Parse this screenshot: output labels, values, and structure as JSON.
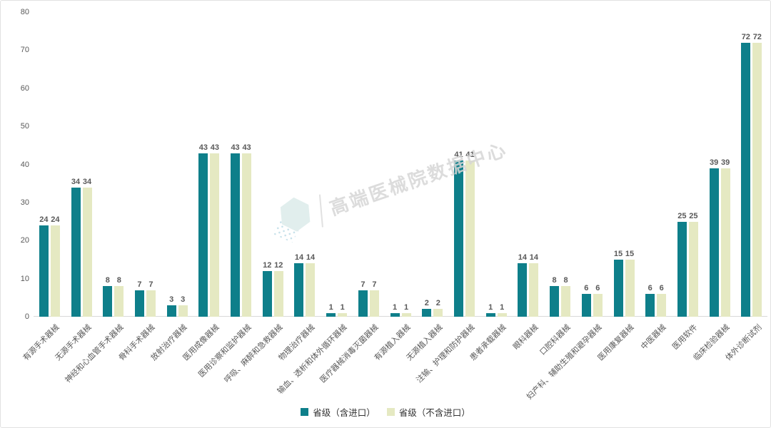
{
  "watermark": {
    "divider": "",
    "text": "高端医械院数据中心"
  },
  "legend": {
    "position": "bottom"
  },
  "chart_data": {
    "type": "bar",
    "title": "",
    "xlabel": "",
    "ylabel": "",
    "categories": [
      "有源手术器械",
      "无源手术器械",
      "神经和心血管手术器械",
      "骨科手术器械",
      "放射治疗器械",
      "医用成像器械",
      "医用诊察和监护器械",
      "呼吸、麻醉和急救器械",
      "物理治疗器械",
      "输血、透析和体外循环器械",
      "医疗器械消毒灭菌器械",
      "有源植入器械",
      "无源植入器械",
      "注输、护理和防护器械",
      "患者承载器械",
      "眼科器械",
      "口腔科器械",
      "妇产科、辅助生殖和避孕器械",
      "医用康复器械",
      "中医器械",
      "医用软件",
      "临床检验器械",
      "体外诊断试剂"
    ],
    "series": [
      {
        "name": "省级（含进口）",
        "color": "#0e7f8a",
        "values": [
          24,
          34,
          8,
          7,
          3,
          43,
          43,
          12,
          14,
          1,
          7,
          1,
          2,
          41,
          1,
          14,
          8,
          6,
          15,
          6,
          25,
          39,
          72
        ]
      },
      {
        "name": "省级（不含进口）",
        "color": "#e5e9c2",
        "values": [
          24,
          34,
          8,
          7,
          3,
          43,
          43,
          12,
          14,
          1,
          7,
          1,
          2,
          41,
          1,
          14,
          8,
          6,
          15,
          6,
          25,
          39,
          72
        ]
      }
    ],
    "ylim": [
      0,
      80
    ],
    "yticks": [
      0,
      10,
      20,
      30,
      40,
      50,
      60,
      70,
      80
    ],
    "grid": false,
    "legend_position": "bottom",
    "value_labels": true,
    "axis_color": "#595959",
    "baseline_color": "#d9d9d9"
  }
}
